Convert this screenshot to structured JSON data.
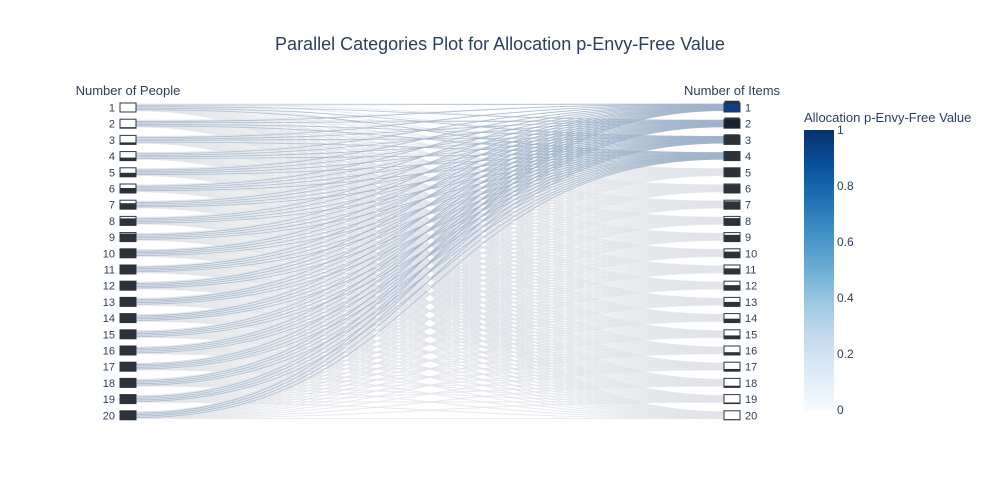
{
  "chart_data": {
    "type": "parallel_categories",
    "title": "Parallel Categories Plot for Allocation p-Envy-Free Value",
    "dimensions": [
      {
        "label": "Number of People",
        "categories": [
          "1",
          "2",
          "3",
          "4",
          "5",
          "6",
          "7",
          "8",
          "9",
          "10",
          "11",
          "12",
          "13",
          "14",
          "15",
          "16",
          "17",
          "18",
          "19",
          "20"
        ]
      },
      {
        "label": "Number of Items",
        "categories": [
          "1",
          "2",
          "3",
          "4",
          "5",
          "6",
          "7",
          "8",
          "9",
          "10",
          "11",
          "12",
          "13",
          "14",
          "15",
          "16",
          "17",
          "18",
          "19",
          "20"
        ]
      }
    ],
    "color_variable": "Allocation p-Envy-Free Value",
    "colorbar": {
      "title": "Allocation p-Envy-Free Value",
      "range": [
        0,
        1
      ],
      "ticks": [
        "0",
        "0.2",
        "0.4",
        "0.6",
        "0.8",
        "1"
      ],
      "colorscale": [
        "#f7fbff",
        "#deebf7",
        "#c6dbef",
        "#9ecae1",
        "#6baed6",
        "#4292c6",
        "#2171b5",
        "#08519c",
        "#08306b"
      ]
    },
    "highlighted_link_color": "#9ab0c8",
    "muted_link_color": "#dfe3e8"
  }
}
